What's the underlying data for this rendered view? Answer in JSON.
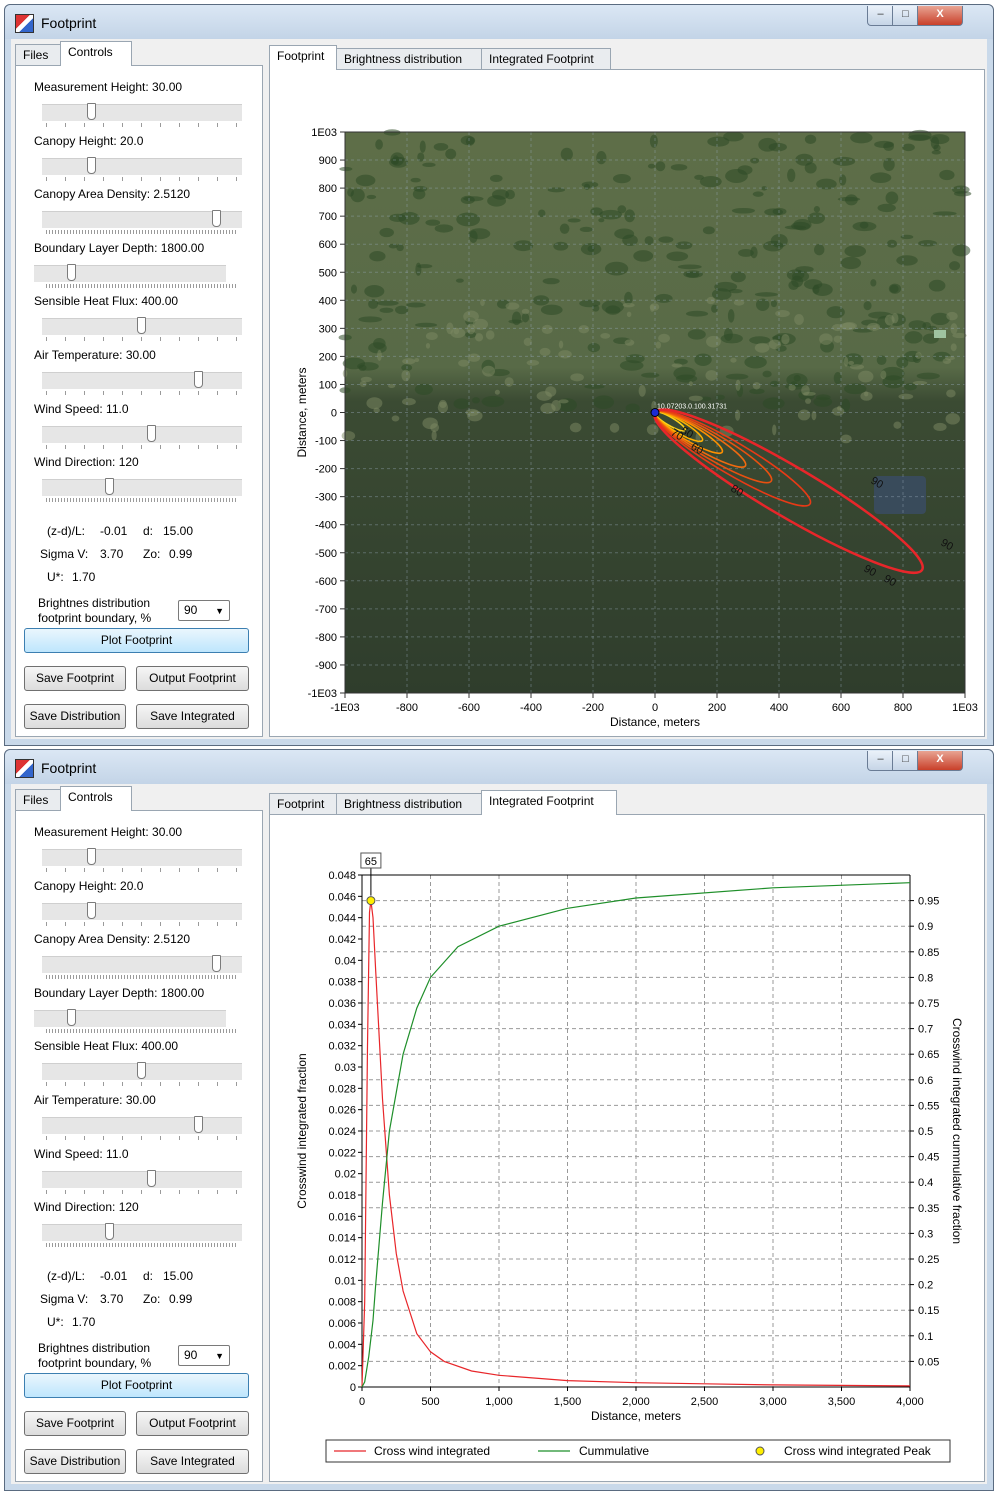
{
  "title": "Footprint",
  "window_buttons": {
    "minimize": "–",
    "maximize": "□",
    "close": "X"
  },
  "left_tabs": [
    "Files",
    "Controls"
  ],
  "right_tabs": [
    "Footprint",
    "Brightness distribution",
    "Integrated Footprint"
  ],
  "controls": [
    {
      "label": "Measurement Height: 30.00",
      "value": 30.0
    },
    {
      "label": "Canopy Height: 20.0",
      "value": 20.0
    },
    {
      "label": "Canopy Area Density: 2.5120",
      "value": 2.512
    },
    {
      "label": "Boundary Layer Depth: 1800.00",
      "value": 1800.0
    },
    {
      "label": "Sensible Heat Flux: 400.00",
      "value": 400.0
    },
    {
      "label": "Air Temperature: 30.00",
      "value": 30.0
    },
    {
      "label": "Wind Speed: 11.0",
      "value": 11.0
    },
    {
      "label": "Wind Direction: 120",
      "value": 120
    }
  ],
  "stats": {
    "zdl_label": "(z-d)/L:",
    "zdl": "-0.01",
    "d_label": "d:",
    "d": "15.00",
    "sigma_label": "Sigma V:",
    "sigma": "3.70",
    "zo_label": "Zo:",
    "zo": "0.99",
    "ustar_label": "U*:",
    "ustar": "1.70"
  },
  "boundary": {
    "label1": "Brightnes distribution",
    "label2": "footprint boundary, %",
    "value": "90"
  },
  "buttons": {
    "plot": "Plot Footprint",
    "save_fp": "Save Footprint",
    "output_fp": "Output Footprint",
    "save_dist": "Save Distribution",
    "save_int": "Save Integrated"
  },
  "map": {
    "ylabel": "Distance, meters",
    "xlabel": "Distance, meters",
    "y_ticks": [
      "1E03",
      "900",
      "800",
      "700",
      "600",
      "500",
      "400",
      "300",
      "200",
      "100",
      "0",
      "-100",
      "-200",
      "-300",
      "-400",
      "-500",
      "-600",
      "-700",
      "-800",
      "-900",
      "-1E03"
    ],
    "x_ticks": [
      "-1E03",
      "-800",
      "-600",
      "-400",
      "-200",
      "0",
      "200",
      "400",
      "600",
      "800",
      "1E03"
    ],
    "contour_labels": [
      "80",
      "90",
      "90",
      "90",
      "90",
      "60",
      "50",
      "70"
    ],
    "tower_label": "10.07203.0.100.31731"
  },
  "chart_data": {
    "type": "line",
    "xlabel": "Distance, meters",
    "ylabel": "Crosswind integrated fraction",
    "ylabel_right": "Crosswind integrated cummulative fraction",
    "x_ticks": [
      "0",
      "500",
      "1,000",
      "1,500",
      "2,000",
      "2,500",
      "3,000",
      "3,500",
      "4,000"
    ],
    "xlim": [
      0,
      4000
    ],
    "ylim": [
      0,
      0.048
    ],
    "y_ticks": [
      "0",
      "0.002",
      "0.004",
      "0.006",
      "0.008",
      "0.01",
      "0.012",
      "0.014",
      "0.016",
      "0.018",
      "0.02",
      "0.022",
      "0.024",
      "0.026",
      "0.028",
      "0.03",
      "0.032",
      "0.034",
      "0.036",
      "0.038",
      "0.04",
      "0.042",
      "0.044",
      "0.046",
      "0.048"
    ],
    "y2lim": [
      0,
      1.0
    ],
    "y2_ticks": [
      "0.05",
      "0.1",
      "0.15",
      "0.2",
      "0.25",
      "0.3",
      "0.35",
      "0.4",
      "0.45",
      "0.5",
      "0.55",
      "0.6",
      "0.65",
      "0.7",
      "0.75",
      "0.8",
      "0.85",
      "0.9",
      "0.95"
    ],
    "grid": true,
    "legend_placement": "bottom",
    "peak_label": "65",
    "series": [
      {
        "name": "Cross wind integrated",
        "color": "#e8262a",
        "x": [
          0,
          20,
          40,
          55,
          65,
          80,
          100,
          150,
          200,
          250,
          300,
          400,
          500,
          600,
          800,
          1000,
          1500,
          2000,
          2500,
          3000,
          4000
        ],
        "y": [
          0,
          0.008,
          0.032,
          0.0445,
          0.0456,
          0.044,
          0.039,
          0.027,
          0.018,
          0.0125,
          0.009,
          0.005,
          0.0033,
          0.0024,
          0.0015,
          0.0011,
          0.0006,
          0.0004,
          0.0003,
          0.0002,
          0.0001
        ]
      },
      {
        "name": "Cummulative",
        "color": "#1f8f2a",
        "x": [
          0,
          20,
          50,
          80,
          100,
          150,
          200,
          300,
          400,
          500,
          700,
          1000,
          1500,
          2000,
          3000,
          4000
        ],
        "y": [
          0,
          0.01,
          0.06,
          0.13,
          0.2,
          0.36,
          0.5,
          0.65,
          0.74,
          0.8,
          0.86,
          0.9,
          0.935,
          0.955,
          0.975,
          0.985
        ]
      },
      {
        "name": "Cross wind integrated Peak",
        "color": "#ffef00",
        "x": [
          65
        ],
        "y": [
          0.0456
        ]
      }
    ]
  }
}
